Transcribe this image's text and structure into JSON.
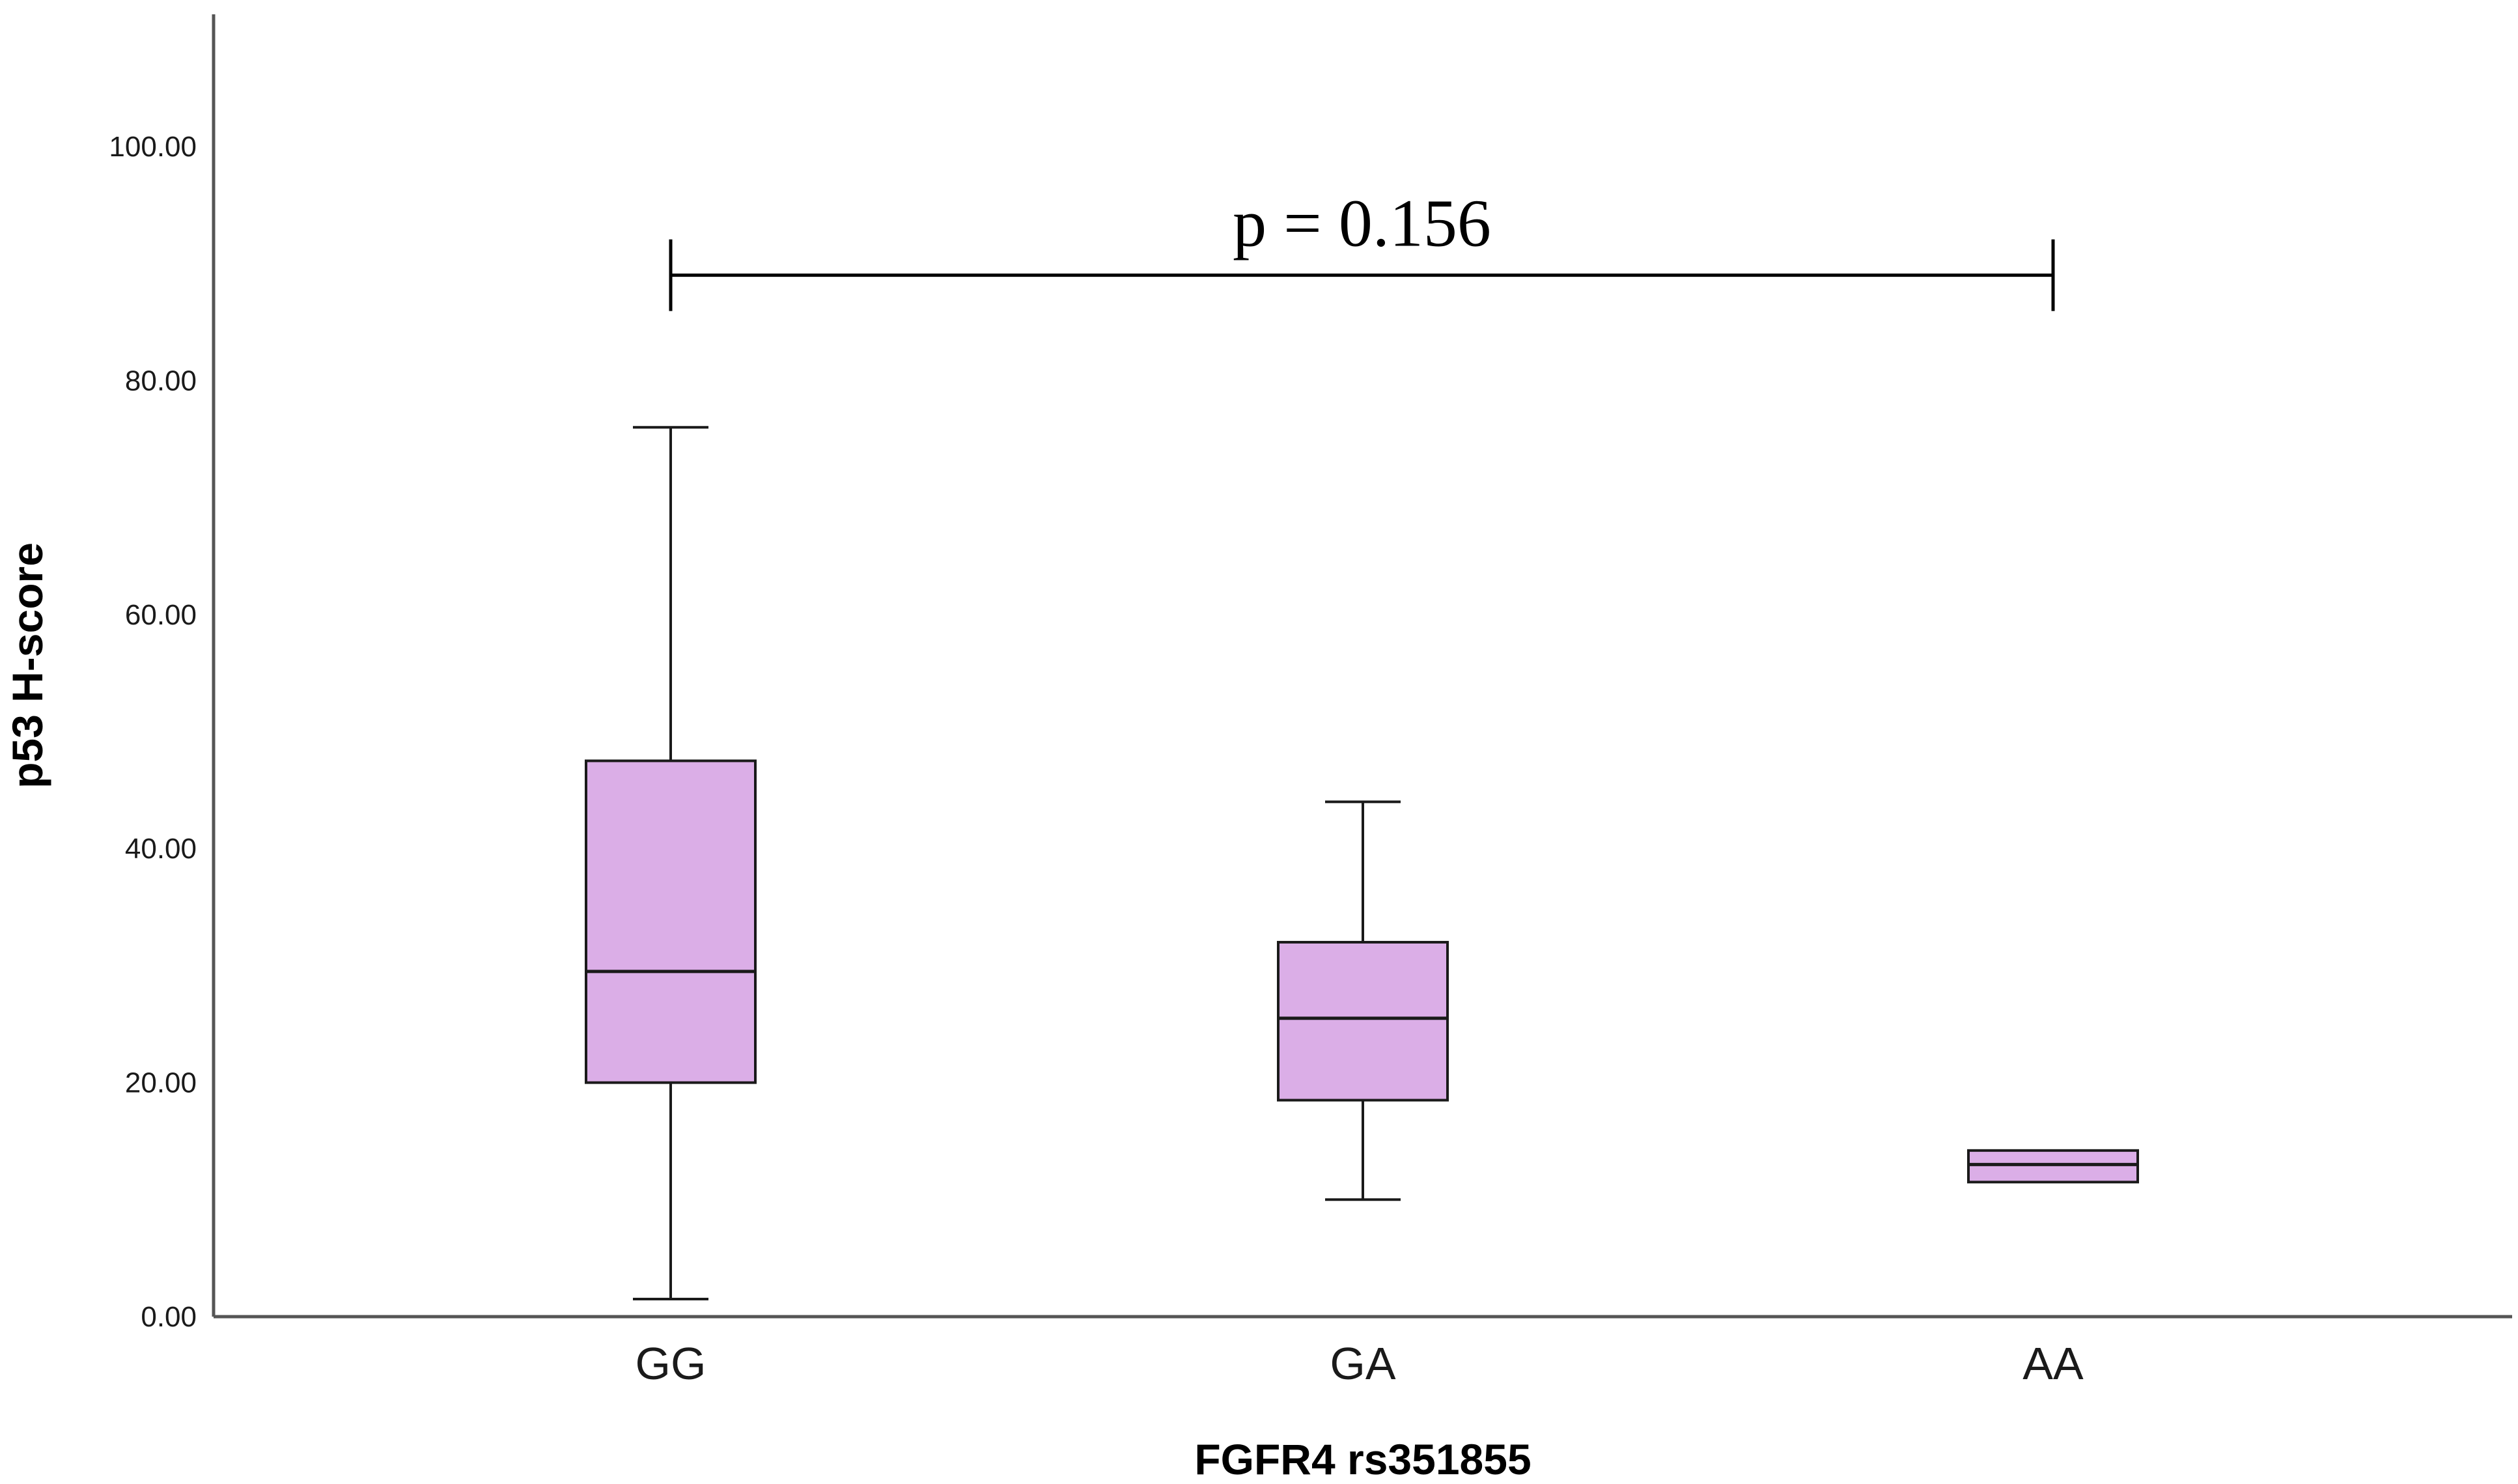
{
  "chart_data": {
    "type": "box",
    "title": "",
    "xlabel": "FGFR4 rs351855",
    "ylabel": "p53 H-score",
    "ylim": [
      0,
      100
    ],
    "yticks": [
      0,
      20,
      40,
      60,
      80,
      100
    ],
    "ytick_labels": [
      "0.00",
      "20.00",
      "40.00",
      "60.00",
      "80.00",
      "100.00"
    ],
    "categories": [
      "GG",
      "GA",
      "AA"
    ],
    "boxes": [
      {
        "category": "GG",
        "min": 1.5,
        "q1": 20.0,
        "median": 29.5,
        "q3": 47.5,
        "max": 76.0
      },
      {
        "category": "GA",
        "min": 10.0,
        "q1": 18.5,
        "median": 25.5,
        "q3": 32.0,
        "max": 44.0
      },
      {
        "category": "AA",
        "min": 11.5,
        "q1": 11.5,
        "median": 13.0,
        "q3": 14.2,
        "max": 14.2
      }
    ],
    "annotation": {
      "text": "p = 0.156",
      "from": "GG",
      "to": "AA",
      "y": 89
    },
    "grid": false,
    "legend": "none",
    "box_fill": "#dbaee7",
    "box_stroke": "#1a1a1a"
  }
}
